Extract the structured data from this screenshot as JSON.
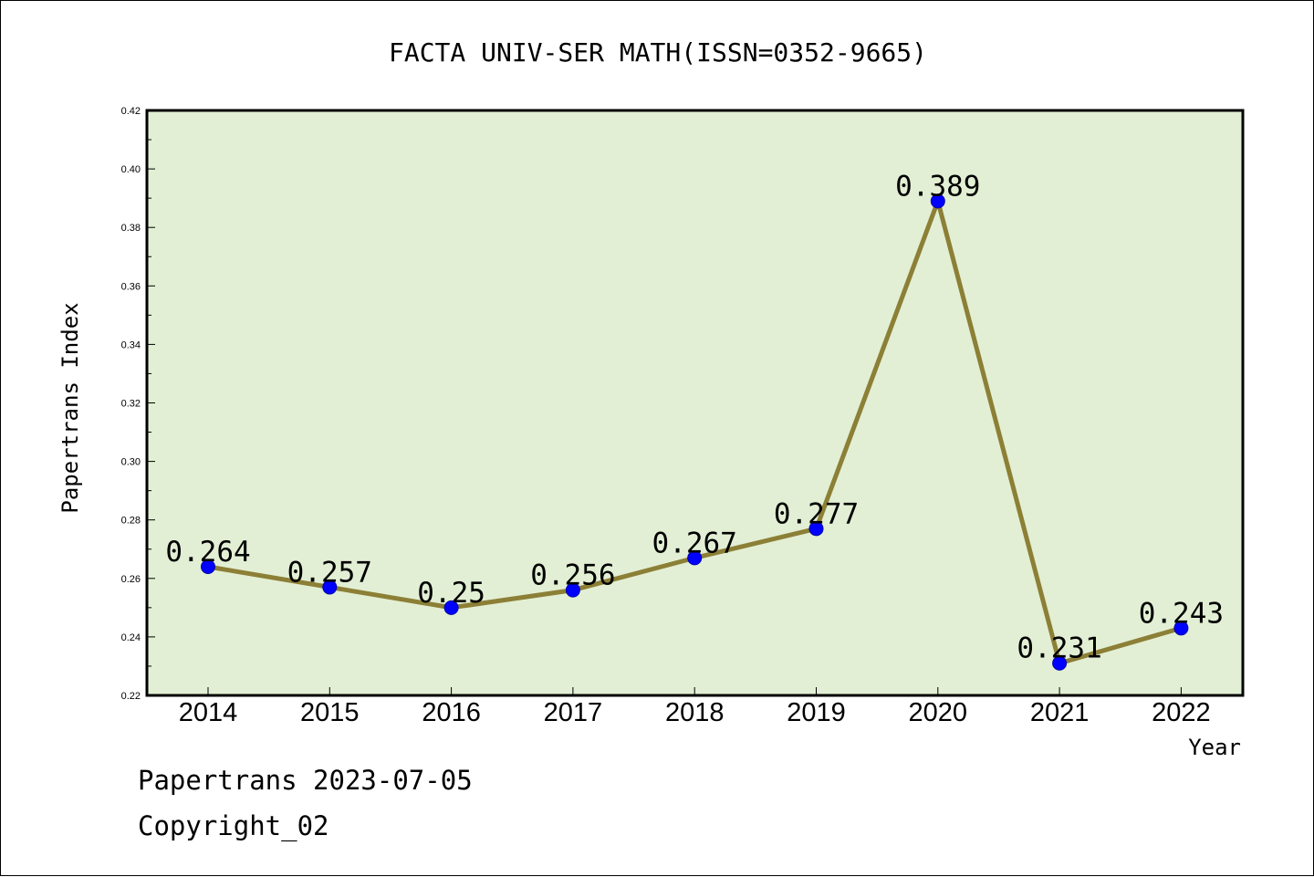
{
  "chart_data": {
    "type": "line",
    "title": "FACTA UNIV-SER MATH(ISSN=0352-9665)",
    "xlabel": "Year",
    "ylabel": "Papertrans Index",
    "categories": [
      "2014",
      "2015",
      "2016",
      "2017",
      "2018",
      "2019",
      "2020",
      "2021",
      "2022"
    ],
    "values": [
      0.264,
      0.257,
      0.25,
      0.256,
      0.267,
      0.277,
      0.389,
      0.231,
      0.243
    ],
    "data_labels": [
      "0.264",
      "0.257",
      "0.25",
      "0.256",
      "0.267",
      "0.277",
      "0.389",
      "0.231",
      "0.243"
    ],
    "ylim": [
      0.22,
      0.42
    ],
    "yticks": [
      "0.22",
      "0.24",
      "0.26",
      "0.28",
      "0.30",
      "0.32",
      "0.34",
      "0.36",
      "0.38",
      "0.40",
      "0.42"
    ],
    "grid": false,
    "legend": "none",
    "colors": {
      "plot_bg": "#e2efd4",
      "line": "#8c7f36",
      "marker": "#0000ff",
      "frame": "#000000"
    }
  },
  "footer": {
    "line1": "Papertrans 2023-07-05",
    "line2": "Copyright_02"
  }
}
